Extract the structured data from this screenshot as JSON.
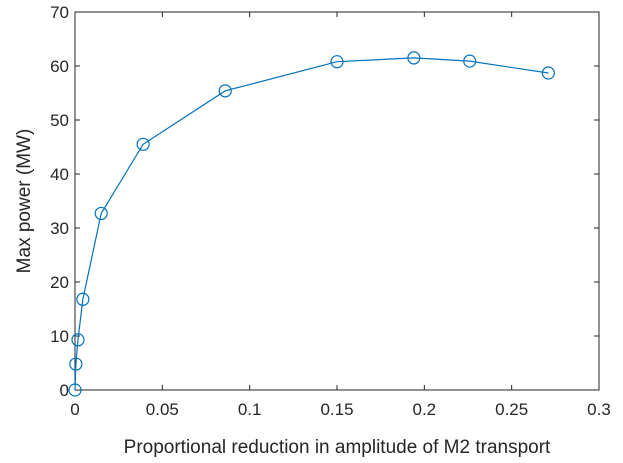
{
  "chart_data": {
    "type": "line",
    "title": "",
    "xlabel": "Proportional reduction in amplitude of M2 transport",
    "ylabel": "Max power (MW)",
    "xlim": [
      0,
      0.3
    ],
    "ylim": [
      0,
      70
    ],
    "xticks": [
      0,
      0.05,
      0.1,
      0.15,
      0.2,
      0.25,
      0.3
    ],
    "xtick_labels": [
      "0",
      "0.05",
      "0.1",
      "0.15",
      "0.2",
      "0.25",
      "0.3"
    ],
    "yticks": [
      0,
      10,
      20,
      30,
      40,
      50,
      60,
      70
    ],
    "ytick_labels": [
      "0",
      "10",
      "20",
      "30",
      "40",
      "50",
      "60",
      "70"
    ],
    "grid": false,
    "series": [
      {
        "color": "#0072BD",
        "marker": "circle",
        "x": [
          0.0,
          0.0005,
          0.0017,
          0.0045,
          0.015,
          0.039,
          0.086,
          0.15,
          0.194,
          0.226,
          0.271
        ],
        "y": [
          0.0,
          4.8,
          9.3,
          16.8,
          32.7,
          45.5,
          55.4,
          60.8,
          61.5,
          60.9,
          58.7
        ]
      }
    ]
  }
}
